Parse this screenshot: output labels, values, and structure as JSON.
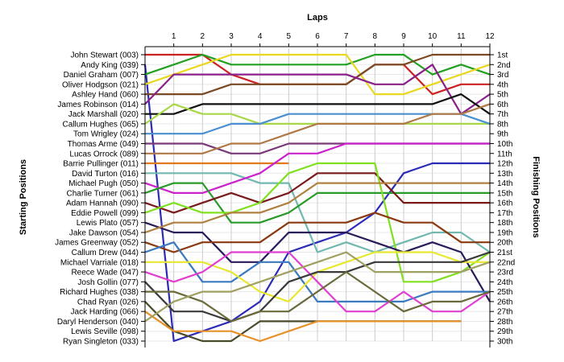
{
  "chart_data": {
    "type": "line",
    "title": "",
    "xlabel": "Laps",
    "ylabel_left": "Starting Positions",
    "ylabel_right": "Finishing Positions",
    "laps": [
      1,
      2,
      3,
      4,
      5,
      6,
      7,
      8,
      9,
      10,
      11,
      12
    ],
    "starting_grid": [
      "John Stewart (003)",
      "Andy King (039)",
      "Daniel Graham (007)",
      "Oliver Hodgson (021)",
      "Ashley Hand (060)",
      "James Robinson (014)",
      "Jack Marshall (020)",
      "Callum Hughes (065)",
      "Tom Wrigley (024)",
      "Thomas Arme (049)",
      "Lucas Orrock (089)",
      "Barrie Pullinger (011)",
      "David Turton (016)",
      "Michael Pugh (050)",
      "Charlie Turner (061)",
      "Adam Hannah (090)",
      "Eddie Powell (099)",
      "Lewis Plato (057)",
      "Jake Dawson (054)",
      "James Greenway (052)",
      "Callum Drew (044)",
      "Michael Varriale (018)",
      "Reece Wade (047)",
      "Josh Gollin (077)",
      "Richard Hughes (038)",
      "Chad Ryan (026)",
      "Jack Harding (066)",
      "Daryl Henderson (040)",
      "Lewis Seville (098)",
      "Ryan Singleton (033)"
    ],
    "finishing_labels": [
      "1st",
      "2nd",
      "3rd",
      "4th",
      "5th",
      "6th",
      "7th",
      "8th",
      "9th",
      "10th",
      "11th",
      "12th",
      "13th",
      "14th",
      "15th",
      "16th",
      "17th",
      "18th",
      "19th",
      "20th",
      "21st",
      "22nd",
      "23rd",
      "24th",
      "25th",
      "26th",
      "27th",
      "28th",
      "29th",
      "30th"
    ],
    "y_range": [
      1,
      30
    ],
    "x_range": [
      0,
      12
    ],
    "grid": true,
    "legend": "none",
    "series": [
      {
        "start": 1,
        "color": "#cc2222",
        "positions": [
          1,
          1,
          3,
          4,
          4,
          4,
          4,
          2,
          2,
          5,
          4,
          4
        ]
      },
      {
        "start": 2,
        "color": "#2b2bb5",
        "positions": [
          30,
          29,
          28,
          26,
          21,
          20,
          19,
          17,
          13,
          12,
          12,
          12
        ]
      },
      {
        "start": 3,
        "color": "#22a022",
        "positions": [
          2,
          1,
          2,
          2,
          2,
          2,
          2,
          1,
          1,
          3,
          2,
          3
        ]
      },
      {
        "start": 4,
        "color": "#e8d820",
        "positions": [
          3,
          2,
          1,
          1,
          1,
          1,
          1,
          5,
          5,
          4,
          3,
          2
        ]
      },
      {
        "start": 5,
        "color": "#7a4a25",
        "positions": [
          5,
          5,
          4,
          4,
          4,
          4,
          4,
          2,
          2,
          1,
          1,
          1
        ]
      },
      {
        "start": 6,
        "color": "#8a208a",
        "positions": [
          3,
          3,
          3,
          3,
          3,
          3,
          3,
          4,
          4,
          2,
          7,
          5
        ]
      },
      {
        "start": 7,
        "color": "#111111",
        "positions": [
          7,
          6,
          6,
          6,
          6,
          6,
          6,
          6,
          6,
          6,
          5,
          7
        ]
      },
      {
        "start": 8,
        "color": "#a8d848",
        "positions": [
          6,
          7,
          7,
          8,
          8,
          8,
          8,
          8,
          8,
          8,
          8,
          8
        ]
      },
      {
        "start": 9,
        "color": "#4a90d0",
        "positions": [
          9,
          9,
          8,
          8,
          7,
          7,
          7,
          7,
          7,
          7,
          7,
          8
        ]
      },
      {
        "start": 10,
        "color": "#7a3a7a",
        "positions": [
          10,
          10,
          11,
          11,
          10,
          10,
          10,
          10,
          10,
          10,
          10,
          10
        ]
      },
      {
        "start": 11,
        "color": "#b07845",
        "positions": [
          11,
          11,
          10,
          10,
          9,
          8,
          8,
          8,
          8,
          7,
          7,
          6
        ]
      },
      {
        "start": 12,
        "color": "#e07a1a",
        "positions": [
          12,
          12,
          12,
          12,
          12
        ]
      },
      {
        "start": 13,
        "color": "#70b8b0",
        "positions": [
          13,
          13,
          13,
          14,
          14,
          21,
          20,
          21,
          20,
          19,
          19,
          21
        ]
      },
      {
        "start": 14,
        "color": "#cc22cc",
        "positions": [
          15,
          15,
          14,
          13,
          11,
          11,
          10,
          10,
          10,
          10,
          10,
          10
        ]
      },
      {
        "start": 15,
        "color": "#2a9a2a",
        "positions": [
          14,
          14,
          18,
          18,
          17,
          15,
          15,
          15,
          15,
          15,
          15,
          15
        ]
      },
      {
        "start": 16,
        "color": "#7a1a1a",
        "positions": [
          17,
          16,
          15,
          16,
          15,
          13,
          13,
          13,
          16,
          16,
          16,
          16
        ]
      },
      {
        "start": 17,
        "color": "#80e020",
        "positions": [
          16,
          17,
          17,
          16,
          13,
          12,
          12,
          12,
          24,
          24,
          23,
          21
        ]
      },
      {
        "start": 18,
        "color": "#2a1a5a",
        "positions": [
          19,
          19,
          22,
          22,
          19,
          19,
          19,
          20,
          21,
          20,
          21,
          26
        ]
      },
      {
        "start": 19,
        "color": "#b08040",
        "positions": [
          18,
          18,
          17,
          17,
          16,
          14,
          14,
          14,
          14,
          14,
          14,
          14
        ]
      },
      {
        "start": 20,
        "color": "#8a3a10",
        "positions": [
          21,
          20,
          20,
          20,
          18,
          18,
          18,
          17,
          18,
          18,
          20,
          20
        ]
      },
      {
        "start": 21,
        "color": "#3a7ac0",
        "positions": [
          20,
          24,
          24,
          22,
          22,
          26,
          26,
          26,
          26,
          25,
          25,
          25
        ]
      },
      {
        "start": 22,
        "color": "#e8e830",
        "positions": [
          22,
          22,
          23,
          25,
          26,
          23,
          22,
          21,
          21,
          21,
          22,
          22
        ]
      },
      {
        "start": 23,
        "color": "#e040d0",
        "positions": [
          24,
          23,
          21,
          21,
          21,
          24,
          27,
          27,
          25,
          27,
          27,
          25
        ]
      },
      {
        "start": 24,
        "color": "#3a3a3a",
        "positions": [
          27,
          27,
          28,
          27,
          24,
          23,
          23,
          22,
          22,
          22,
          22,
          21
        ]
      },
      {
        "start": 25,
        "color": "#6a6a3a",
        "positions": [
          25,
          26,
          28,
          27,
          27,
          25,
          23,
          25,
          27,
          26,
          26,
          25
        ]
      },
      {
        "start": 26,
        "color": "#4a4a2a",
        "positions": [
          29,
          30,
          30,
          28,
          28,
          28,
          28,
          28,
          28,
          28,
          28
        ]
      },
      {
        "start": 27,
        "color": "#e8902a",
        "positions": [
          29,
          29,
          29,
          30,
          29,
          28,
          28,
          28,
          28,
          28,
          28
        ]
      },
      {
        "start": 28,
        "color": "#a0a060",
        "positions": [
          26,
          25,
          25,
          24,
          23,
          22,
          21,
          23,
          23,
          23,
          23,
          22
        ]
      }
    ]
  }
}
